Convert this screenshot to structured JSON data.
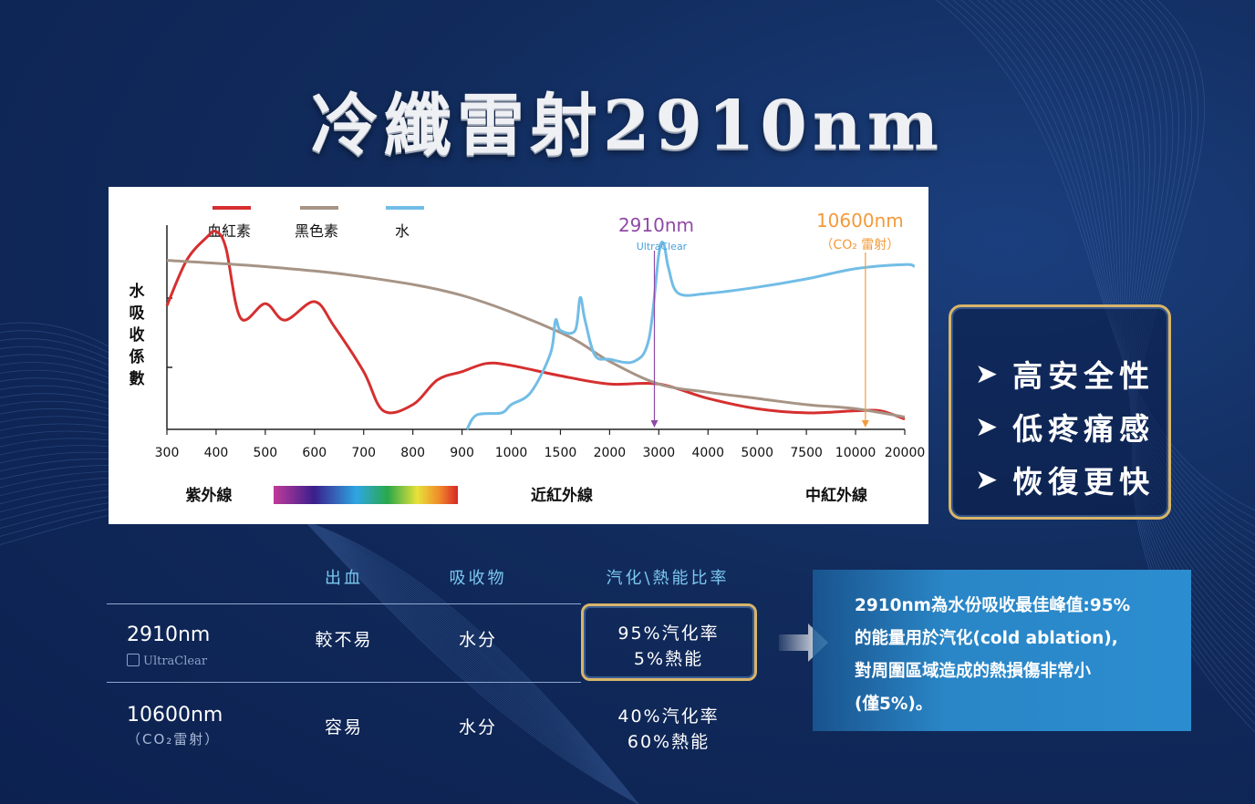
{
  "title": "冷纖雷射2910nm",
  "colors": {
    "background": "#112b5c",
    "hemoglobin": "#d62f2f",
    "melanin": "#a69486",
    "water": "#72bde6",
    "marker_2910": "#8f4aa6",
    "marker_10600": "#f39a3b",
    "gold_border": "#d8b56a"
  },
  "chart": {
    "legend": [
      {
        "label": "血紅素",
        "color": "#d62f2f"
      },
      {
        "label": "黑色素",
        "color": "#a69486"
      },
      {
        "label": "水",
        "color": "#72bde6"
      }
    ],
    "ylabel_chars": [
      "水",
      "吸",
      "收",
      "係",
      "數"
    ],
    "x_ticks": [
      "300",
      "400",
      "500",
      "600",
      "700",
      "800",
      "900",
      "1000",
      "1500",
      "2000",
      "3000",
      "4000",
      "5000",
      "7500",
      "10000",
      "20000"
    ],
    "marker_2910": {
      "label": "2910nm",
      "brand": "UltraClear"
    },
    "marker_10600": {
      "label": "10600nm",
      "sub": "（CO₂ 雷射）"
    },
    "spectrum_labels": {
      "uv": "紫外線",
      "nir": "近紅外線",
      "mir": "中紅外線"
    }
  },
  "chart_data": {
    "type": "line",
    "x_axis": "categorical",
    "x_categories": [
      "300",
      "400",
      "500",
      "600",
      "700",
      "800",
      "900",
      "1000",
      "1500",
      "2000",
      "3000",
      "4000",
      "5000",
      "7500",
      "10000",
      "20000"
    ],
    "ylabel": "水吸收係數",
    "y_scale": "relative (unlabeled)",
    "series": [
      {
        "name": "血紅素",
        "color": "#d62f2f",
        "points": [
          [
            0,
            0.6
          ],
          [
            0.4,
            0.82
          ],
          [
            0.8,
            0.93
          ],
          [
            1.0,
            0.96
          ],
          [
            1.2,
            0.88
          ],
          [
            1.5,
            0.54
          ],
          [
            2.0,
            0.61
          ],
          [
            2.4,
            0.53
          ],
          [
            3.0,
            0.62
          ],
          [
            3.4,
            0.5
          ],
          [
            4.0,
            0.28
          ],
          [
            4.4,
            0.09
          ],
          [
            5.0,
            0.12
          ],
          [
            5.5,
            0.24
          ],
          [
            6.0,
            0.28
          ],
          [
            6.5,
            0.32
          ],
          [
            7.0,
            0.31
          ],
          [
            8.0,
            0.26
          ],
          [
            9.0,
            0.22
          ],
          [
            10.0,
            0.22
          ],
          [
            11.0,
            0.15
          ],
          [
            12.0,
            0.1
          ],
          [
            13.0,
            0.08
          ],
          [
            14.0,
            0.09
          ],
          [
            14.5,
            0.09
          ],
          [
            15.0,
            0.05
          ]
        ]
      },
      {
        "name": "黑色素",
        "color": "#a69486",
        "points": [
          [
            0,
            0.82
          ],
          [
            2.0,
            0.79
          ],
          [
            4.0,
            0.74
          ],
          [
            6.0,
            0.65
          ],
          [
            8.0,
            0.47
          ],
          [
            9.0,
            0.33
          ],
          [
            10.0,
            0.22
          ],
          [
            11.0,
            0.18
          ],
          [
            12.0,
            0.15
          ],
          [
            13.0,
            0.12
          ],
          [
            14.0,
            0.1
          ],
          [
            15.0,
            0.06
          ]
        ]
      },
      {
        "name": "水",
        "color": "#72bde6",
        "points": [
          [
            6.1,
            0.0
          ],
          [
            6.3,
            0.07
          ],
          [
            6.8,
            0.08
          ],
          [
            7.0,
            0.12
          ],
          [
            7.4,
            0.18
          ],
          [
            7.8,
            0.37
          ],
          [
            7.9,
            0.53
          ],
          [
            8.0,
            0.48
          ],
          [
            8.3,
            0.48
          ],
          [
            8.4,
            0.64
          ],
          [
            8.5,
            0.53
          ],
          [
            8.7,
            0.36
          ],
          [
            9.0,
            0.34
          ],
          [
            9.5,
            0.33
          ],
          [
            9.8,
            0.44
          ],
          [
            10.0,
            0.85
          ],
          [
            10.1,
            0.9
          ],
          [
            10.2,
            0.78
          ],
          [
            10.4,
            0.66
          ],
          [
            11.0,
            0.66
          ],
          [
            12.0,
            0.69
          ],
          [
            13.0,
            0.73
          ],
          [
            14.0,
            0.78
          ],
          [
            15.0,
            0.8
          ],
          [
            15.2,
            0.79
          ]
        ]
      }
    ],
    "markers": [
      {
        "label": "2910nm",
        "x_value": "2910",
        "color": "#8f4aa6"
      },
      {
        "label": "10600nm",
        "x_value": "10600",
        "color": "#f39a3b"
      }
    ]
  },
  "features": [
    "高安全性",
    "低疼痛感",
    "恢復更快"
  ],
  "table": {
    "headers": [
      "出血",
      "吸收物",
      "汽化\\熱能比率"
    ],
    "rows": [
      {
        "name": "2910nm",
        "brand": "UltraClear",
        "bleeding": "較不易",
        "absorber": "水分",
        "ratio_line1": "95%汽化率",
        "ratio_line2": "5%熱能"
      },
      {
        "name": "10600nm",
        "sub": "（CO₂雷射）",
        "bleeding": "容易",
        "absorber": "水分",
        "ratio_line1": "40%汽化率",
        "ratio_line2": "60%熱能"
      }
    ]
  },
  "note": {
    "lines": [
      "2910nm為水份吸收最佳峰值:95%",
      "的能量用於汽化(cold ablation),",
      "對周圍區域造成的熱損傷非常小",
      "(僅5%)。"
    ]
  }
}
